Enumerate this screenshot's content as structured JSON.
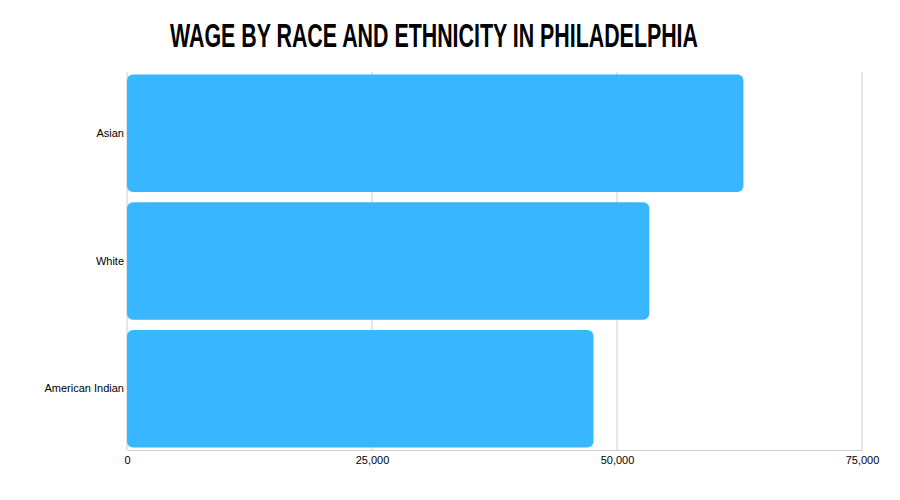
{
  "chart_data": {
    "type": "bar",
    "title": "WAGE BY RACE AND ETHNICITY IN PHILADELPHIA",
    "orientation": "horizontal",
    "categories": [
      "Asian",
      "White",
      "American Indian"
    ],
    "values": [
      62900,
      53300,
      47600
    ],
    "color": "#38b6ff",
    "xlim": [
      0,
      75000
    ],
    "xticks": [
      0,
      {
        "value": 25000,
        "label": "25,000"
      },
      {
        "value": 50000,
        "label": "50,000"
      },
      {
        "value": 75000,
        "label": "75,000"
      }
    ],
    "grid": true
  }
}
